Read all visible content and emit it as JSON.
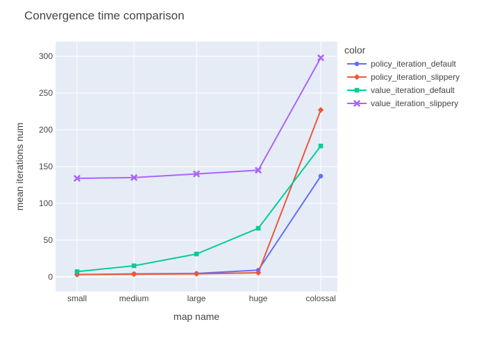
{
  "chart_data": {
    "type": "line",
    "title": "Convergence time comparison",
    "xlabel": "map name",
    "ylabel": "mean iterations num",
    "categories": [
      "small",
      "medium",
      "large",
      "huge",
      "colossal"
    ],
    "ylim": [
      -20,
      320
    ],
    "yticks": [
      0,
      50,
      100,
      150,
      200,
      250,
      300
    ],
    "grid": true,
    "legend_title": "color",
    "legend_position": "top-right",
    "series": [
      {
        "name": "policy_iteration_default",
        "color": "#636efa",
        "marker": "circle",
        "values": [
          3,
          4,
          4.5,
          9,
          137
        ]
      },
      {
        "name": "policy_iteration_slippery",
        "color": "#ef553b",
        "marker": "diamond",
        "values": [
          3,
          3.5,
          4,
          5.5,
          227
        ]
      },
      {
        "name": "value_iteration_default",
        "color": "#00cc96",
        "marker": "square",
        "values": [
          7,
          15,
          31,
          66,
          178
        ]
      },
      {
        "name": "value_iteration_slippery",
        "color": "#ab63fa",
        "marker": "x",
        "values": [
          134,
          135,
          140,
          145,
          298
        ]
      }
    ]
  }
}
